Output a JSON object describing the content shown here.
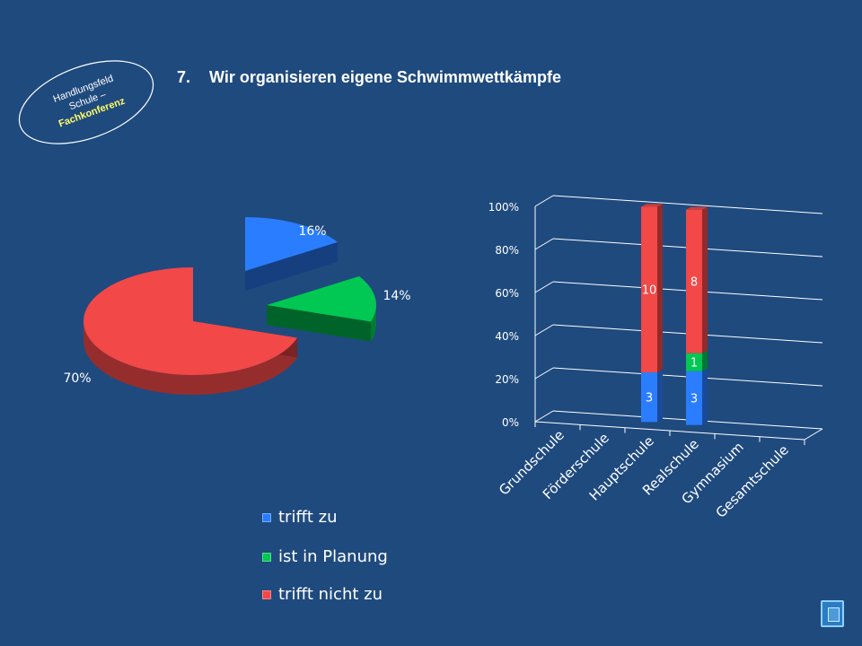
{
  "badge": {
    "line1": "Handlungsfeld",
    "line2": "Schule –",
    "line3": "Fachkonferenz"
  },
  "title": {
    "number": "7.",
    "text": "Wir organisieren eigene Schwimmwettkämpfe"
  },
  "colors": {
    "background": "#1f4a7e",
    "trifft_zu": "#2b7dff",
    "in_planung": "#00c853",
    "trifft_nicht_zu": "#f24848",
    "badge_accent": "#ffff66"
  },
  "chart_data": [
    {
      "type": "pie",
      "labels": [
        "trifft zu",
        "ist in Planung",
        "trifft nicht zu"
      ],
      "values": [
        16,
        14,
        70
      ],
      "value_labels": [
        "16%",
        "14%",
        "70%"
      ]
    },
    {
      "type": "bar",
      "stacked": "percent",
      "categories": [
        "Grundschule",
        "Förderschule",
        "Hauptschule",
        "Realschule",
        "Gymnasium",
        "Gesamtschule"
      ],
      "series": [
        {
          "name": "trifft zu",
          "values": [
            0,
            0,
            3,
            3,
            0,
            0
          ]
        },
        {
          "name": "ist in Planung",
          "values": [
            0,
            0,
            0,
            1,
            0,
            0
          ]
        },
        {
          "name": "trifft nicht zu",
          "values": [
            0,
            0,
            10,
            8,
            0,
            0
          ]
        }
      ],
      "yticks": [
        "0%",
        "20%",
        "40%",
        "60%",
        "80%",
        "100%"
      ],
      "ylim": [
        0,
        100
      ],
      "grid": true
    }
  ],
  "legend": {
    "items": [
      {
        "label": "trifft zu",
        "color": "#2b7dff"
      },
      {
        "label": "ist in Planung",
        "color": "#00c853"
      },
      {
        "label": "trifft nicht zu",
        "color": "#f24848"
      }
    ]
  },
  "nav": {
    "icon": "document-icon"
  }
}
